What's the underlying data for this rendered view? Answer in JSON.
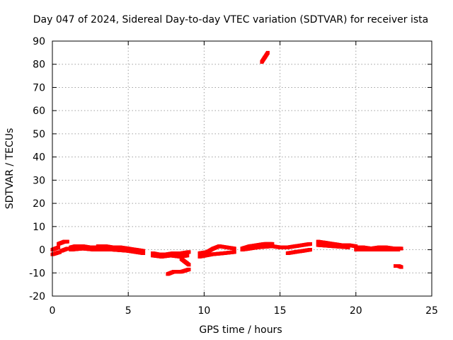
{
  "chart_data": {
    "type": "scatter",
    "title": "Day 047 of 2024, Sidereal Day-to-day VTEC variation (SDTVAR) for receiver ista",
    "xlabel": "GPS time / hours",
    "ylabel": "SDTVAR / TECUs",
    "xlim": [
      0,
      25
    ],
    "ylim": [
      -20,
      90
    ],
    "xticks": [
      0,
      5,
      10,
      15,
      20,
      25
    ],
    "yticks": [
      -20,
      -10,
      0,
      10,
      20,
      30,
      40,
      50,
      60,
      70,
      80,
      90
    ],
    "grid": true,
    "color": "#ff0000",
    "series": [
      {
        "name": "SDTVAR",
        "segments": [
          {
            "x": [
              0.0,
              0.25,
              0.5
            ],
            "y": [
              -2.0,
              -1.5,
              -1.0
            ]
          },
          {
            "x": [
              0.0,
              0.2,
              0.4
            ],
            "y": [
              0.0,
              0.5,
              1.0
            ]
          },
          {
            "x": [
              0.4,
              0.6,
              0.8,
              1.0
            ],
            "y": [
              2.5,
              3.0,
              3.5,
              3.5
            ]
          },
          {
            "x": [
              0.6,
              0.8,
              1.0
            ],
            "y": [
              -0.5,
              0.0,
              0.5
            ]
          },
          {
            "x": [
              1.2,
              1.5,
              2.0,
              2.5,
              3.0
            ],
            "y": [
              1.0,
              1.5,
              1.5,
              1.0,
              1.0
            ]
          },
          {
            "x": [
              1.2,
              2.0,
              2.8
            ],
            "y": [
              0.0,
              0.5,
              0.0
            ]
          },
          {
            "x": [
              3.0,
              3.5,
              4.0,
              4.5,
              5.0,
              5.5,
              6.0
            ],
            "y": [
              1.5,
              1.5,
              1.0,
              1.0,
              0.5,
              0.0,
              -0.5
            ]
          },
          {
            "x": [
              3.0,
              4.0,
              5.0,
              6.0
            ],
            "y": [
              0.0,
              0.0,
              -0.5,
              -1.5
            ]
          },
          {
            "x": [
              6.6,
              7.0,
              7.5,
              8.0,
              8.5,
              9.0
            ],
            "y": [
              -1.5,
              -2.0,
              -2.0,
              -1.5,
              -1.5,
              -1.0
            ]
          },
          {
            "x": [
              6.6,
              7.2,
              7.8,
              8.4,
              8.9
            ],
            "y": [
              -2.5,
              -3.0,
              -2.5,
              -3.0,
              -2.5
            ]
          },
          {
            "x": [
              8.5,
              8.8,
              9.0
            ],
            "y": [
              -4.0,
              -5.5,
              -6.5
            ]
          },
          {
            "x": [
              7.6,
              8.0,
              8.5,
              9.0
            ],
            "y": [
              -10.5,
              -9.5,
              -9.5,
              -8.5
            ]
          },
          {
            "x": [
              9.7,
              10.2,
              10.6,
              11.0,
              11.5,
              12.0
            ],
            "y": [
              -1.5,
              -1.0,
              0.5,
              1.5,
              1.0,
              0.5
            ]
          },
          {
            "x": [
              9.7,
              10.5,
              11.3,
              12.0
            ],
            "y": [
              -3.0,
              -2.0,
              -1.5,
              -1.0
            ]
          },
          {
            "x": [
              12.5,
              13.0,
              13.5,
              14.0,
              14.5
            ],
            "y": [
              0.5,
              1.5,
              2.0,
              2.5,
              2.5
            ]
          },
          {
            "x": [
              12.5,
              13.5,
              14.5
            ],
            "y": [
              0.0,
              1.0,
              1.5
            ]
          },
          {
            "x": [
              13.8,
              14.0,
              14.2
            ],
            "y": [
              81.0,
              83.0,
              85.0
            ]
          },
          {
            "x": [
              14.5,
              15.0,
              15.5,
              16.0,
              16.5,
              17.0
            ],
            "y": [
              1.5,
              1.0,
              1.0,
              1.5,
              2.0,
              2.5
            ]
          },
          {
            "x": [
              15.5,
              16.0,
              16.5,
              17.0
            ],
            "y": [
              -1.5,
              -1.0,
              -0.5,
              0.0
            ]
          },
          {
            "x": [
              17.5,
              18.0,
              18.5,
              19.0,
              19.5,
              20.0
            ],
            "y": [
              3.5,
              3.0,
              2.5,
              2.0,
              2.0,
              1.5
            ]
          },
          {
            "x": [
              17.5,
              18.5,
              19.5
            ],
            "y": [
              2.0,
              1.5,
              1.0
            ]
          },
          {
            "x": [
              20.0,
              20.5,
              21.0,
              21.5,
              22.0,
              22.5,
              23.0
            ],
            "y": [
              1.0,
              1.0,
              0.5,
              1.0,
              1.0,
              0.5,
              0.5
            ]
          },
          {
            "x": [
              20.0,
              21.0,
              22.0,
              22.8
            ],
            "y": [
              0.0,
              0.0,
              0.0,
              0.0
            ]
          },
          {
            "x": [
              22.6,
              22.8,
              23.0
            ],
            "y": [
              -7.0,
              -7.0,
              -7.5
            ]
          }
        ]
      }
    ]
  }
}
